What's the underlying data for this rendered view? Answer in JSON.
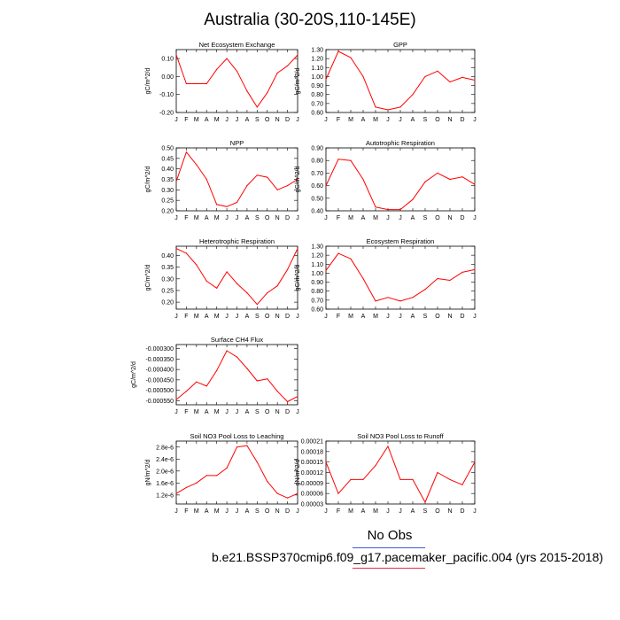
{
  "page": {
    "title": "Australia (30-20S,110-145E)"
  },
  "legend": {
    "noobs_label": "No Obs",
    "noobs_color": "#3a5bd6",
    "case_label": "b.e21.BSSP370cmip6.f09_g17.pacemaker_pacific.004 (yrs 2015-2018)",
    "case_color": "#e0304a"
  },
  "chart_data": [
    {
      "type": "line",
      "title": "Net Ecosystem Exchange",
      "ylabel": "gC/m^2/d",
      "categories": [
        "J",
        "F",
        "M",
        "A",
        "M",
        "J",
        "J",
        "A",
        "S",
        "O",
        "N",
        "D",
        "J"
      ],
      "ylim": [
        -0.2,
        0.15
      ],
      "yticks": [
        -0.2,
        -0.1,
        0.0,
        0.1
      ],
      "ytick_labels": [
        "-0.20",
        "-0.10",
        "0.00",
        "0.10"
      ],
      "series": [
        {
          "color": "#ff0000",
          "values": [
            0.12,
            -0.04,
            -0.04,
            -0.04,
            0.04,
            0.1,
            0.03,
            -0.08,
            -0.17,
            -0.09,
            0.02,
            0.06,
            0.12
          ]
        }
      ]
    },
    {
      "type": "line",
      "title": "GPP",
      "ylabel": "gC/m^2/d",
      "categories": [
        "J",
        "F",
        "M",
        "A",
        "M",
        "J",
        "J",
        "A",
        "S",
        "O",
        "N",
        "D",
        "J"
      ],
      "ylim": [
        0.6,
        1.3
      ],
      "yticks": [
        0.6,
        0.7,
        0.8,
        0.9,
        1.0,
        1.1,
        1.2,
        1.3
      ],
      "ytick_labels": [
        "0.60",
        "0.70",
        "0.80",
        "0.90",
        "1.00",
        "1.10",
        "1.20",
        "1.30"
      ],
      "series": [
        {
          "color": "#ff0000",
          "values": [
            0.97,
            1.28,
            1.21,
            1.0,
            0.66,
            0.63,
            0.66,
            0.8,
            1.0,
            1.06,
            0.94,
            0.99,
            0.96
          ]
        }
      ]
    },
    {
      "type": "line",
      "title": "NPP",
      "ylabel": "gC/m^2/d",
      "categories": [
        "J",
        "F",
        "M",
        "A",
        "M",
        "J",
        "J",
        "A",
        "S",
        "O",
        "N",
        "D",
        "J"
      ],
      "ylim": [
        0.2,
        0.5
      ],
      "yticks": [
        0.2,
        0.25,
        0.3,
        0.35,
        0.4,
        0.45,
        0.5
      ],
      "ytick_labels": [
        "0.20",
        "0.25",
        "0.30",
        "0.35",
        "0.40",
        "0.45",
        "0.50"
      ],
      "series": [
        {
          "color": "#ff0000",
          "values": [
            0.34,
            0.48,
            0.42,
            0.35,
            0.23,
            0.22,
            0.24,
            0.32,
            0.37,
            0.36,
            0.3,
            0.32,
            0.35
          ]
        }
      ]
    },
    {
      "type": "line",
      "title": "Autotrophic Respiration",
      "ylabel": "gC/m^2/d",
      "categories": [
        "J",
        "F",
        "M",
        "A",
        "M",
        "J",
        "J",
        "A",
        "S",
        "O",
        "N",
        "D",
        "J"
      ],
      "ylim": [
        0.4,
        0.9
      ],
      "yticks": [
        0.4,
        0.5,
        0.6,
        0.7,
        0.8,
        0.9
      ],
      "ytick_labels": [
        "0.40",
        "0.50",
        "0.60",
        "0.70",
        "0.80",
        "0.90"
      ],
      "series": [
        {
          "color": "#ff0000",
          "values": [
            0.6,
            0.81,
            0.8,
            0.65,
            0.43,
            0.41,
            0.41,
            0.49,
            0.63,
            0.7,
            0.65,
            0.67,
            0.61
          ]
        }
      ]
    },
    {
      "type": "line",
      "title": "Heterotrophic Respiration",
      "ylabel": "gC/m^2/d",
      "categories": [
        "J",
        "F",
        "M",
        "A",
        "M",
        "J",
        "J",
        "A",
        "S",
        "O",
        "N",
        "D",
        "J"
      ],
      "ylim": [
        0.17,
        0.44
      ],
      "yticks": [
        0.2,
        0.25,
        0.3,
        0.35,
        0.4
      ],
      "ytick_labels": [
        "0.20",
        "0.25",
        "0.30",
        "0.35",
        "0.40"
      ],
      "series": [
        {
          "color": "#ff0000",
          "values": [
            0.43,
            0.41,
            0.36,
            0.29,
            0.26,
            0.33,
            0.28,
            0.24,
            0.19,
            0.24,
            0.27,
            0.34,
            0.43
          ]
        }
      ]
    },
    {
      "type": "line",
      "title": "Ecosystem Respiration",
      "ylabel": "gC/m^2/d",
      "categories": [
        "J",
        "F",
        "M",
        "A",
        "M",
        "J",
        "J",
        "A",
        "S",
        "O",
        "N",
        "D",
        "J"
      ],
      "ylim": [
        0.6,
        1.3
      ],
      "yticks": [
        0.6,
        0.7,
        0.8,
        0.9,
        1.0,
        1.1,
        1.2,
        1.3
      ],
      "ytick_labels": [
        "0.60",
        "0.70",
        "0.80",
        "0.90",
        "1.00",
        "1.10",
        "1.20",
        "1.30"
      ],
      "series": [
        {
          "color": "#ff0000",
          "values": [
            1.03,
            1.22,
            1.16,
            0.94,
            0.69,
            0.73,
            0.69,
            0.73,
            0.82,
            0.94,
            0.92,
            1.01,
            1.04
          ]
        }
      ]
    },
    {
      "type": "line",
      "title": "Surface CH4 Flux",
      "ylabel": "gC/m^2/d",
      "categories": [
        "J",
        "F",
        "M",
        "A",
        "M",
        "J",
        "J",
        "A",
        "S",
        "O",
        "N",
        "D",
        "J"
      ],
      "ylim": [
        -0.00057,
        -0.00028
      ],
      "yticks": [
        -0.00055,
        -0.0005,
        -0.00045,
        -0.0004,
        -0.00035,
        -0.0003
      ],
      "ytick_labels": [
        "-0.000550",
        "-0.000500",
        "-0.000450",
        "-0.000400",
        "-0.000350",
        "-0.000300"
      ],
      "series": [
        {
          "color": "#ff0000",
          "values": [
            -0.000545,
            -0.000505,
            -0.00046,
            -0.00048,
            -0.000405,
            -0.00031,
            -0.00034,
            -0.000395,
            -0.000455,
            -0.000445,
            -0.000505,
            -0.000555,
            -0.00053
          ]
        }
      ]
    },
    {
      "type": "line",
      "title": "Soil NO3 Pool Loss to Leaching",
      "ylabel": "gN/m^2/d",
      "categories": [
        "J",
        "F",
        "M",
        "A",
        "M",
        "J",
        "J",
        "A",
        "S",
        "O",
        "N",
        "D",
        "J"
      ],
      "ylim": [
        9e-07,
        3e-06
      ],
      "yticks": [
        1.2e-06,
        1.6e-06,
        2e-06,
        2.4e-06,
        2.8e-06
      ],
      "ytick_labels": [
        "1.2e-6",
        "1.6e-6",
        "2.0e-6",
        "2.4e-6",
        "2.8e-6"
      ],
      "series": [
        {
          "color": "#ff0000",
          "values": [
            1.25e-06,
            1.45e-06,
            1.6e-06,
            1.85e-06,
            1.85e-06,
            2.1e-06,
            2.8e-06,
            2.85e-06,
            2.3e-06,
            1.65e-06,
            1.25e-06,
            1.1e-06,
            1.25e-06
          ]
        }
      ]
    },
    {
      "type": "line",
      "title": "Soil NO3 Pool Loss to Runoff",
      "ylabel": "gN/m^2/d",
      "categories": [
        "J",
        "F",
        "M",
        "A",
        "M",
        "J",
        "J",
        "A",
        "S",
        "O",
        "N",
        "D",
        "J"
      ],
      "ylim": [
        3e-05,
        0.00021
      ],
      "yticks": [
        3e-05,
        6e-05,
        9e-05,
        0.00012,
        0.00015,
        0.00018,
        0.00021
      ],
      "ytick_labels": [
        "0.00003",
        "0.00006",
        "0.00009",
        "0.00012",
        "0.00015",
        "0.00018",
        "0.00021"
      ],
      "series": [
        {
          "color": "#ff0000",
          "values": [
            0.00015,
            6e-05,
            0.0001,
            0.0001,
            0.00014,
            0.000195,
            0.0001,
            0.0001,
            3.5e-05,
            0.00012,
            0.0001,
            8.5e-05,
            0.00015
          ]
        }
      ]
    }
  ]
}
